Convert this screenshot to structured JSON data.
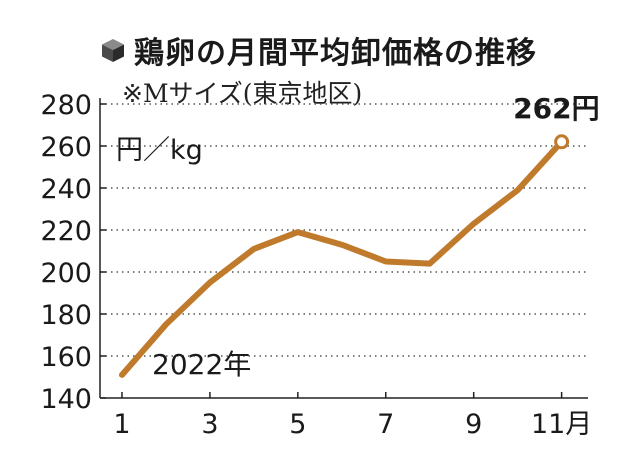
{
  "chart_data": {
    "type": "line",
    "title": "鶏卵の月間平均卸価格の推移",
    "subtitle": "※Mサイズ(東京地区)",
    "ylabel": "円／kg",
    "year_label": "2022年",
    "end_label": "262円",
    "x": [
      1,
      2,
      3,
      4,
      5,
      6,
      7,
      8,
      9,
      10,
      11
    ],
    "x_ticks": [
      1,
      3,
      5,
      7,
      9,
      11
    ],
    "x_tick_labels": [
      "1",
      "3",
      "5",
      "7",
      "9",
      "11月"
    ],
    "xlim": [
      0.5,
      11.6
    ],
    "y_ticks": [
      140,
      160,
      180,
      200,
      220,
      240,
      260,
      280
    ],
    "ylim": [
      140,
      280
    ],
    "grid": true,
    "series": [
      {
        "values": [
          151,
          175,
          195,
          211,
          219,
          213,
          205,
          204,
          223,
          239,
          262
        ]
      }
    ],
    "colors": {
      "line": "#c07a2c",
      "grid": "#555555",
      "text": "#1a1a1a"
    }
  }
}
